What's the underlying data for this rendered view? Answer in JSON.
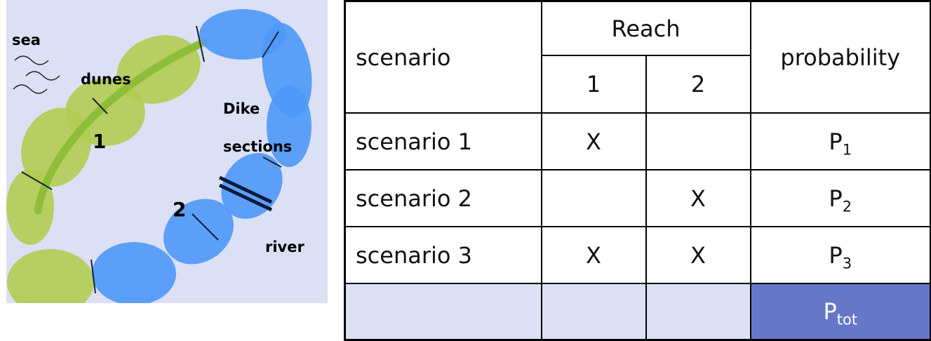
{
  "diagram": {
    "labels": {
      "sea": "sea",
      "dunes": "dunes",
      "dike_line1": "Dike",
      "dike_line2": "sections",
      "river": "river",
      "reach1": "1",
      "reach2": "2"
    },
    "colors": {
      "background": "#dbe0f5",
      "dune_fill": "#b3cc52",
      "dike_fill": "#4d98fa",
      "dune_crest": "#8ebd3a"
    }
  },
  "table": {
    "header": {
      "scenario": "scenario",
      "reach": "Reach",
      "reach_1": "1",
      "reach_2": "2",
      "probability": "probability"
    },
    "rows": [
      {
        "scenario": "scenario 1",
        "reach1": "X",
        "reach2": "",
        "p": "P",
        "sub": "1"
      },
      {
        "scenario": "scenario 2",
        "reach1": "",
        "reach2": "X",
        "p": "P",
        "sub": "2"
      },
      {
        "scenario": "scenario 3",
        "reach1": "X",
        "reach2": "X",
        "p": "P",
        "sub": "3"
      }
    ],
    "total": {
      "p": "P",
      "sub": "tot"
    },
    "colors": {
      "footer_fill": "#dbe1f2",
      "total_fill": "#6677c8",
      "total_text": "#ffffff"
    }
  }
}
